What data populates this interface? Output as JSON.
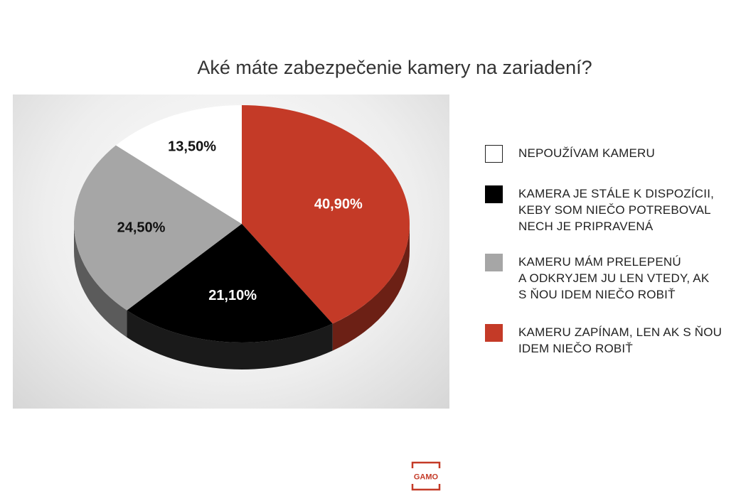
{
  "chart_data": {
    "type": "pie",
    "title": "Aké máte zabezpečenie kamery na zariadení?",
    "slices": [
      {
        "label": "Kameru zapínam, len ak s ňou idem niečo robiť",
        "value": 40.9,
        "value_label": "40,90%",
        "color": "#c43a27"
      },
      {
        "label": "Kamera je stále k dispozícii, keby som niečo potreboval nech je pripravená",
        "value": 21.1,
        "value_label": "21,10%",
        "color": "#000000"
      },
      {
        "label": "Kameru mám prelepenú a odkryjem ju len vtedy, ak s ňou idem niečo robiť",
        "value": 24.5,
        "value_label": "24,50%",
        "color": "#a6a6a6"
      },
      {
        "label": "Nepoužívam kameru",
        "value": 13.5,
        "value_label": "13,50%",
        "color": "#ffffff"
      }
    ],
    "legend": [
      {
        "lines": [
          "Nepoužívam kameru"
        ],
        "color": "#ffffff"
      },
      {
        "lines": [
          "Kamera je stále k dispozícii,",
          "keby som niečo potreboval",
          "nech je pripravená"
        ],
        "color": "#000000"
      },
      {
        "lines": [
          "Kameru mám prelepenú",
          "a odkryjem ju len vtedy, ak",
          "s ňou idem niečo robiť"
        ],
        "color": "#a6a6a6"
      },
      {
        "lines": [
          "Kameru zapínam, len ak s ňou",
          "idem niečo robiť"
        ],
        "color": "#c43a27"
      }
    ],
    "legend_position": "right",
    "style": "3d-pie"
  },
  "logo": {
    "text": "GAMO",
    "color": "#c43a27"
  }
}
